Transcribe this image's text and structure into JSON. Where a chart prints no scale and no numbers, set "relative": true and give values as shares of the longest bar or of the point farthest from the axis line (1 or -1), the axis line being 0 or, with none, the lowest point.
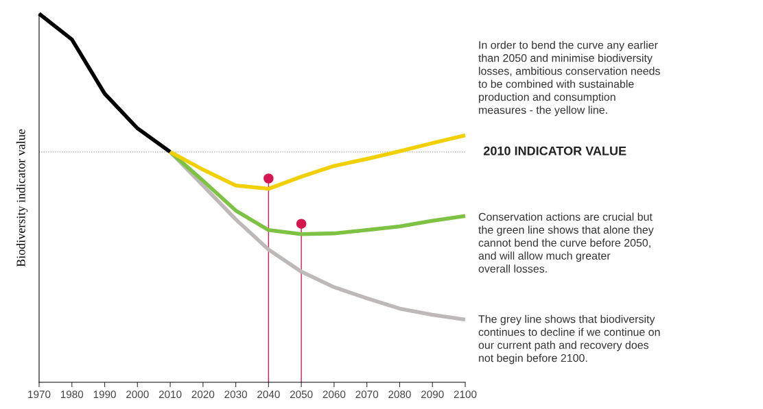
{
  "chart_data": {
    "type": "line",
    "relative": true,
    "ylabel": "Biodiversity indicator value",
    "xlim": [
      1970,
      2100
    ],
    "xticks": [
      1970,
      1980,
      1990,
      2000,
      2010,
      2020,
      2030,
      2040,
      2050,
      2060,
      2070,
      2080,
      2090,
      2100
    ],
    "grid": false,
    "legend": false,
    "marker": "none",
    "line_style": "solid",
    "series": [
      {
        "color": "#000000",
        "x": [
          1970,
          1980,
          1990,
          2000,
          2010
        ],
        "values": [
          1.0,
          0.93,
          0.783,
          0.689,
          0.625
        ]
      },
      {
        "color": "#bfb8b8",
        "x": [
          2010,
          2020,
          2030,
          2040,
          2050,
          2060,
          2070,
          2080,
          2090,
          2100
        ],
        "values": [
          0.625,
          0.534,
          0.442,
          0.36,
          0.3,
          0.258,
          0.228,
          0.2,
          0.183,
          0.17
        ]
      },
      {
        "color": "#7dc242",
        "x": [
          2010,
          2020,
          2030,
          2040,
          2050,
          2060,
          2070,
          2080,
          2090,
          2100
        ],
        "values": [
          0.625,
          0.547,
          0.466,
          0.413,
          0.402,
          0.404,
          0.413,
          0.423,
          0.438,
          0.451
        ]
      },
      {
        "color": "#f2d000",
        "x": [
          2010,
          2020,
          2030,
          2040,
          2050,
          2060,
          2070,
          2080,
          2090,
          2100
        ],
        "values": [
          0.625,
          0.577,
          0.534,
          0.525,
          0.558,
          0.587,
          0.606,
          0.627,
          0.649,
          0.67
        ]
      },
      {
        "type": "lollipop",
        "marker": "circle",
        "color": "#d6174f",
        "x": [
          2040,
          2050
        ],
        "values": [
          0.553,
          0.43
        ]
      }
    ],
    "ref_lines": [
      {
        "axis": "y",
        "value": 0.625,
        "label": "2010 INDICATOR VALUE",
        "color": "#999999",
        "line_style": "dotted"
      }
    ],
    "annotations": [
      "In order to bend the curve any earlier\nthan 2050 and minimise biodiversity\nlosses, ambitious conservation needs\nto be combined with sustainable\nproduction and consumption\nmeasures - the yellow line.",
      "Conservation actions are crucial but\nthe green line shows that alone they\ncannot bend the curve before 2050,\nand will allow much greater\noverall losses.",
      "The grey line shows that biodiversity\ncontinues to decline if we continue on\nour current path and recovery does\nnot begin before 2100."
    ]
  }
}
